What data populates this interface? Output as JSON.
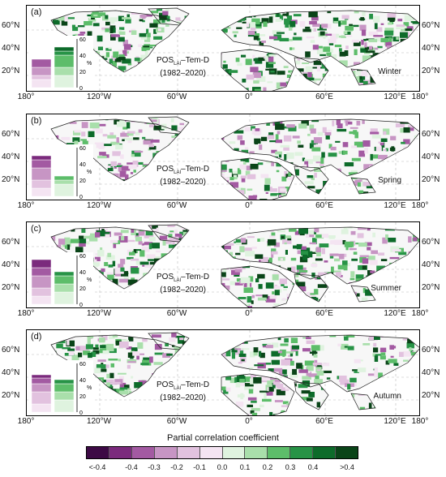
{
  "panels": [
    {
      "label": "(a)",
      "season": "Winter",
      "green_share": 0.7,
      "purple_share": 0.15,
      "inset": {
        "left": [
          10,
          15,
          25,
          35
        ],
        "right": [
          15,
          25,
          40,
          45,
          50
        ]
      }
    },
    {
      "label": "(b)",
      "season": "Spring",
      "green_share": 0.4,
      "purple_share": 0.4,
      "inset": {
        "left": [
          10,
          20,
          35,
          45,
          50
        ],
        "right": [
          15,
          20,
          25
        ]
      }
    },
    {
      "label": "(c)",
      "season": "Summer",
      "green_share": 0.5,
      "purple_share": 0.35,
      "inset": {
        "left": [
          10,
          20,
          35,
          45,
          55
        ],
        "right": [
          15,
          25,
          35,
          40
        ]
      }
    },
    {
      "label": "(d)",
      "season": "Autumn",
      "green_share": 0.55,
      "purple_share": 0.25,
      "inset": {
        "left": [
          10,
          25,
          35,
          42,
          46
        ],
        "right": [
          15,
          25,
          35,
          40
        ]
      }
    }
  ],
  "pos_label": {
    "main": "POS",
    "sub": "LAI",
    "rest": "–Tem-D",
    "years": "(1982–2020)"
  },
  "lat_labels": [
    "60°N",
    "40°N",
    "20°N"
  ],
  "lon_labels": [
    "180°",
    "120°W",
    "60°W",
    "0°",
    "60°E",
    "120°E",
    "180°"
  ],
  "inset_axis": {
    "ticks": [
      "0",
      "20",
      "40",
      "60"
    ],
    "unit": "%"
  },
  "colorbar": {
    "title": "Partial correlation coefficient",
    "ticks": [
      "<-0.4",
      "-0.4",
      "-0.3",
      "-0.2",
      "-0.1",
      "0.0",
      "0.1",
      "0.2",
      "0.3",
      "0.4",
      ">0.4"
    ],
    "colors": [
      "#3d0a45",
      "#7b2a7d",
      "#a35aa2",
      "#c795c4",
      "#e2c2df",
      "#f4e4f2",
      "#dff3df",
      "#a9dfab",
      "#5dbd6a",
      "#279346",
      "#0d6b2a",
      "#0a4418"
    ]
  }
}
